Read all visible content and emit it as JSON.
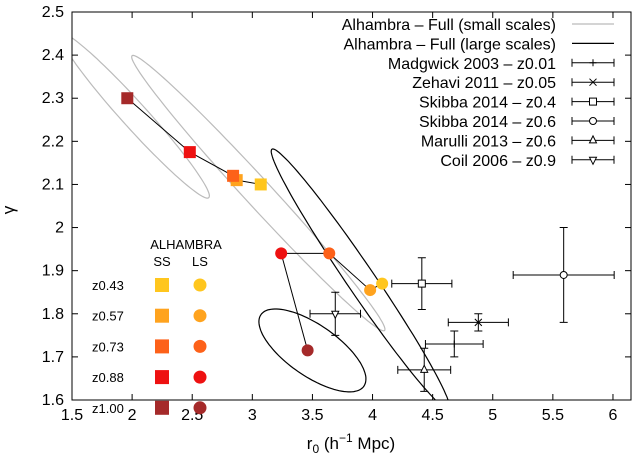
{
  "chart_data": {
    "type": "scatter",
    "xlabel": "r",
    "xlabel_sub": "0",
    "xlabel_rest": " (h",
    "xlabel_sup": "−1",
    "xlabel_end": " Mpc)",
    "ylabel": "γ",
    "xlim": [
      1.5,
      6.15
    ],
    "ylim": [
      1.6,
      2.5
    ],
    "xticks": [
      1.5,
      2,
      2.5,
      3,
      3.5,
      4,
      4.5,
      5,
      5.5,
      6
    ],
    "xtick_labels": [
      "1.5",
      "2",
      "2.5",
      "3",
      "3.5",
      "4",
      "4.5",
      "5",
      "5.5",
      "6"
    ],
    "yticks": [
      1.6,
      1.7,
      1.8,
      1.9,
      2.0,
      2.1,
      2.2,
      2.3,
      2.4,
      2.5
    ],
    "ytick_labels": [
      "1.6",
      "1.7",
      "1.8",
      "1.9",
      "2",
      "2.1",
      "2.2",
      "2.3",
      "2.4",
      "2.5"
    ],
    "legend_position": "top-right",
    "legend": [
      {
        "label": "Alhambra – Full (small scales)",
        "kind": "line",
        "color": "#bbbbbb"
      },
      {
        "label": "Alhambra – Full (large scales)",
        "kind": "line",
        "color": "#000000"
      },
      {
        "label": "Madgwick 2003 – z0.01",
        "kind": "errorbar",
        "marker": "plus"
      },
      {
        "label": "Zehavi 2011 – z0.05",
        "kind": "errorbar",
        "marker": "cross"
      },
      {
        "label": "Skibba 2014 – z0.4",
        "kind": "errorbar",
        "marker": "square"
      },
      {
        "label": "Skibba 2014 – z0.6",
        "kind": "errorbar",
        "marker": "circle"
      },
      {
        "label": "Marulli 2013 – z0.6",
        "kind": "errorbar",
        "marker": "triangle"
      },
      {
        "label": "Coil 2006 – z0.9",
        "kind": "errorbar",
        "marker": "triangle-down"
      }
    ],
    "ellipses": [
      {
        "group": "small scales",
        "color": "#bbbbbb",
        "cx": 2.02,
        "cy": 2.26,
        "rx": 0.65,
        "ry": 0.045,
        "angle_deg": -0.3
      },
      {
        "group": "small scales",
        "color": "#bbbbbb",
        "cx": 3.05,
        "cy": 2.08,
        "rx": 1.1,
        "ry": 0.048,
        "angle_deg": -0.3
      },
      {
        "group": "large scales",
        "color": "#000000",
        "cx": 3.9,
        "cy": 1.88,
        "rx": 0.8,
        "ry": 0.06,
        "angle_deg": -0.4
      },
      {
        "group": "large scales",
        "color": "#000000",
        "cx": 3.5,
        "cy": 1.715,
        "rx": 0.45,
        "ry": 0.07,
        "angle_deg": -0.15
      }
    ],
    "alhambra": {
      "title": "ALHAMBRA",
      "columns": [
        "SS",
        "LS"
      ],
      "samples": [
        {
          "z": "z0.43",
          "color": "#ffc61e",
          "ss": {
            "r0": 3.07,
            "gamma": 2.1
          },
          "ls": {
            "r0": 4.08,
            "gamma": 1.87
          }
        },
        {
          "z": "z0.57",
          "color": "#ffa31e",
          "ss": {
            "r0": 2.87,
            "gamma": 2.11
          },
          "ls": {
            "r0": 3.98,
            "gamma": 1.855
          }
        },
        {
          "z": "z0.73",
          "color": "#fd6119",
          "ss": {
            "r0": 2.84,
            "gamma": 2.12
          },
          "ls": {
            "r0": 3.64,
            "gamma": 1.94
          }
        },
        {
          "z": "z0.88",
          "color": "#ee1111",
          "ss": {
            "r0": 2.48,
            "gamma": 2.175
          },
          "ls": {
            "r0": 3.24,
            "gamma": 1.94
          }
        },
        {
          "z": "z1.00",
          "color": "#a52a2a",
          "ss": {
            "r0": 1.96,
            "gamma": 2.3
          },
          "ls": {
            "r0": 3.46,
            "gamma": 1.715
          }
        }
      ]
    },
    "literature": [
      {
        "name": "Madgwick 2003 – z0.01",
        "marker": "plus",
        "x": 4.68,
        "y": 1.73,
        "xerr": 0.24,
        "yerr": 0.03
      },
      {
        "name": "Zehavi 2011 – z0.05",
        "marker": "cross",
        "x": 4.88,
        "y": 1.78,
        "xerr": 0.25,
        "yerr": 0.02
      },
      {
        "name": "Skibba 2014 – z0.4",
        "marker": "square",
        "x": 4.41,
        "y": 1.87,
        "xerr": 0.25,
        "yerr": 0.06
      },
      {
        "name": "Skibba 2014 – z0.6",
        "marker": "circle",
        "x": 5.59,
        "y": 1.89,
        "xerr": 0.42,
        "yerr": 0.11
      },
      {
        "name": "Marulli 2013 – z0.6",
        "marker": "triangle",
        "x": 4.43,
        "y": 1.67,
        "xerr": 0.22,
        "yerr": 0.05
      },
      {
        "name": "Coil 2006 – z0.9",
        "marker": "triangle-down",
        "x": 3.69,
        "y": 1.8,
        "xerr": 0.21,
        "yerr": 0.05
      }
    ]
  }
}
